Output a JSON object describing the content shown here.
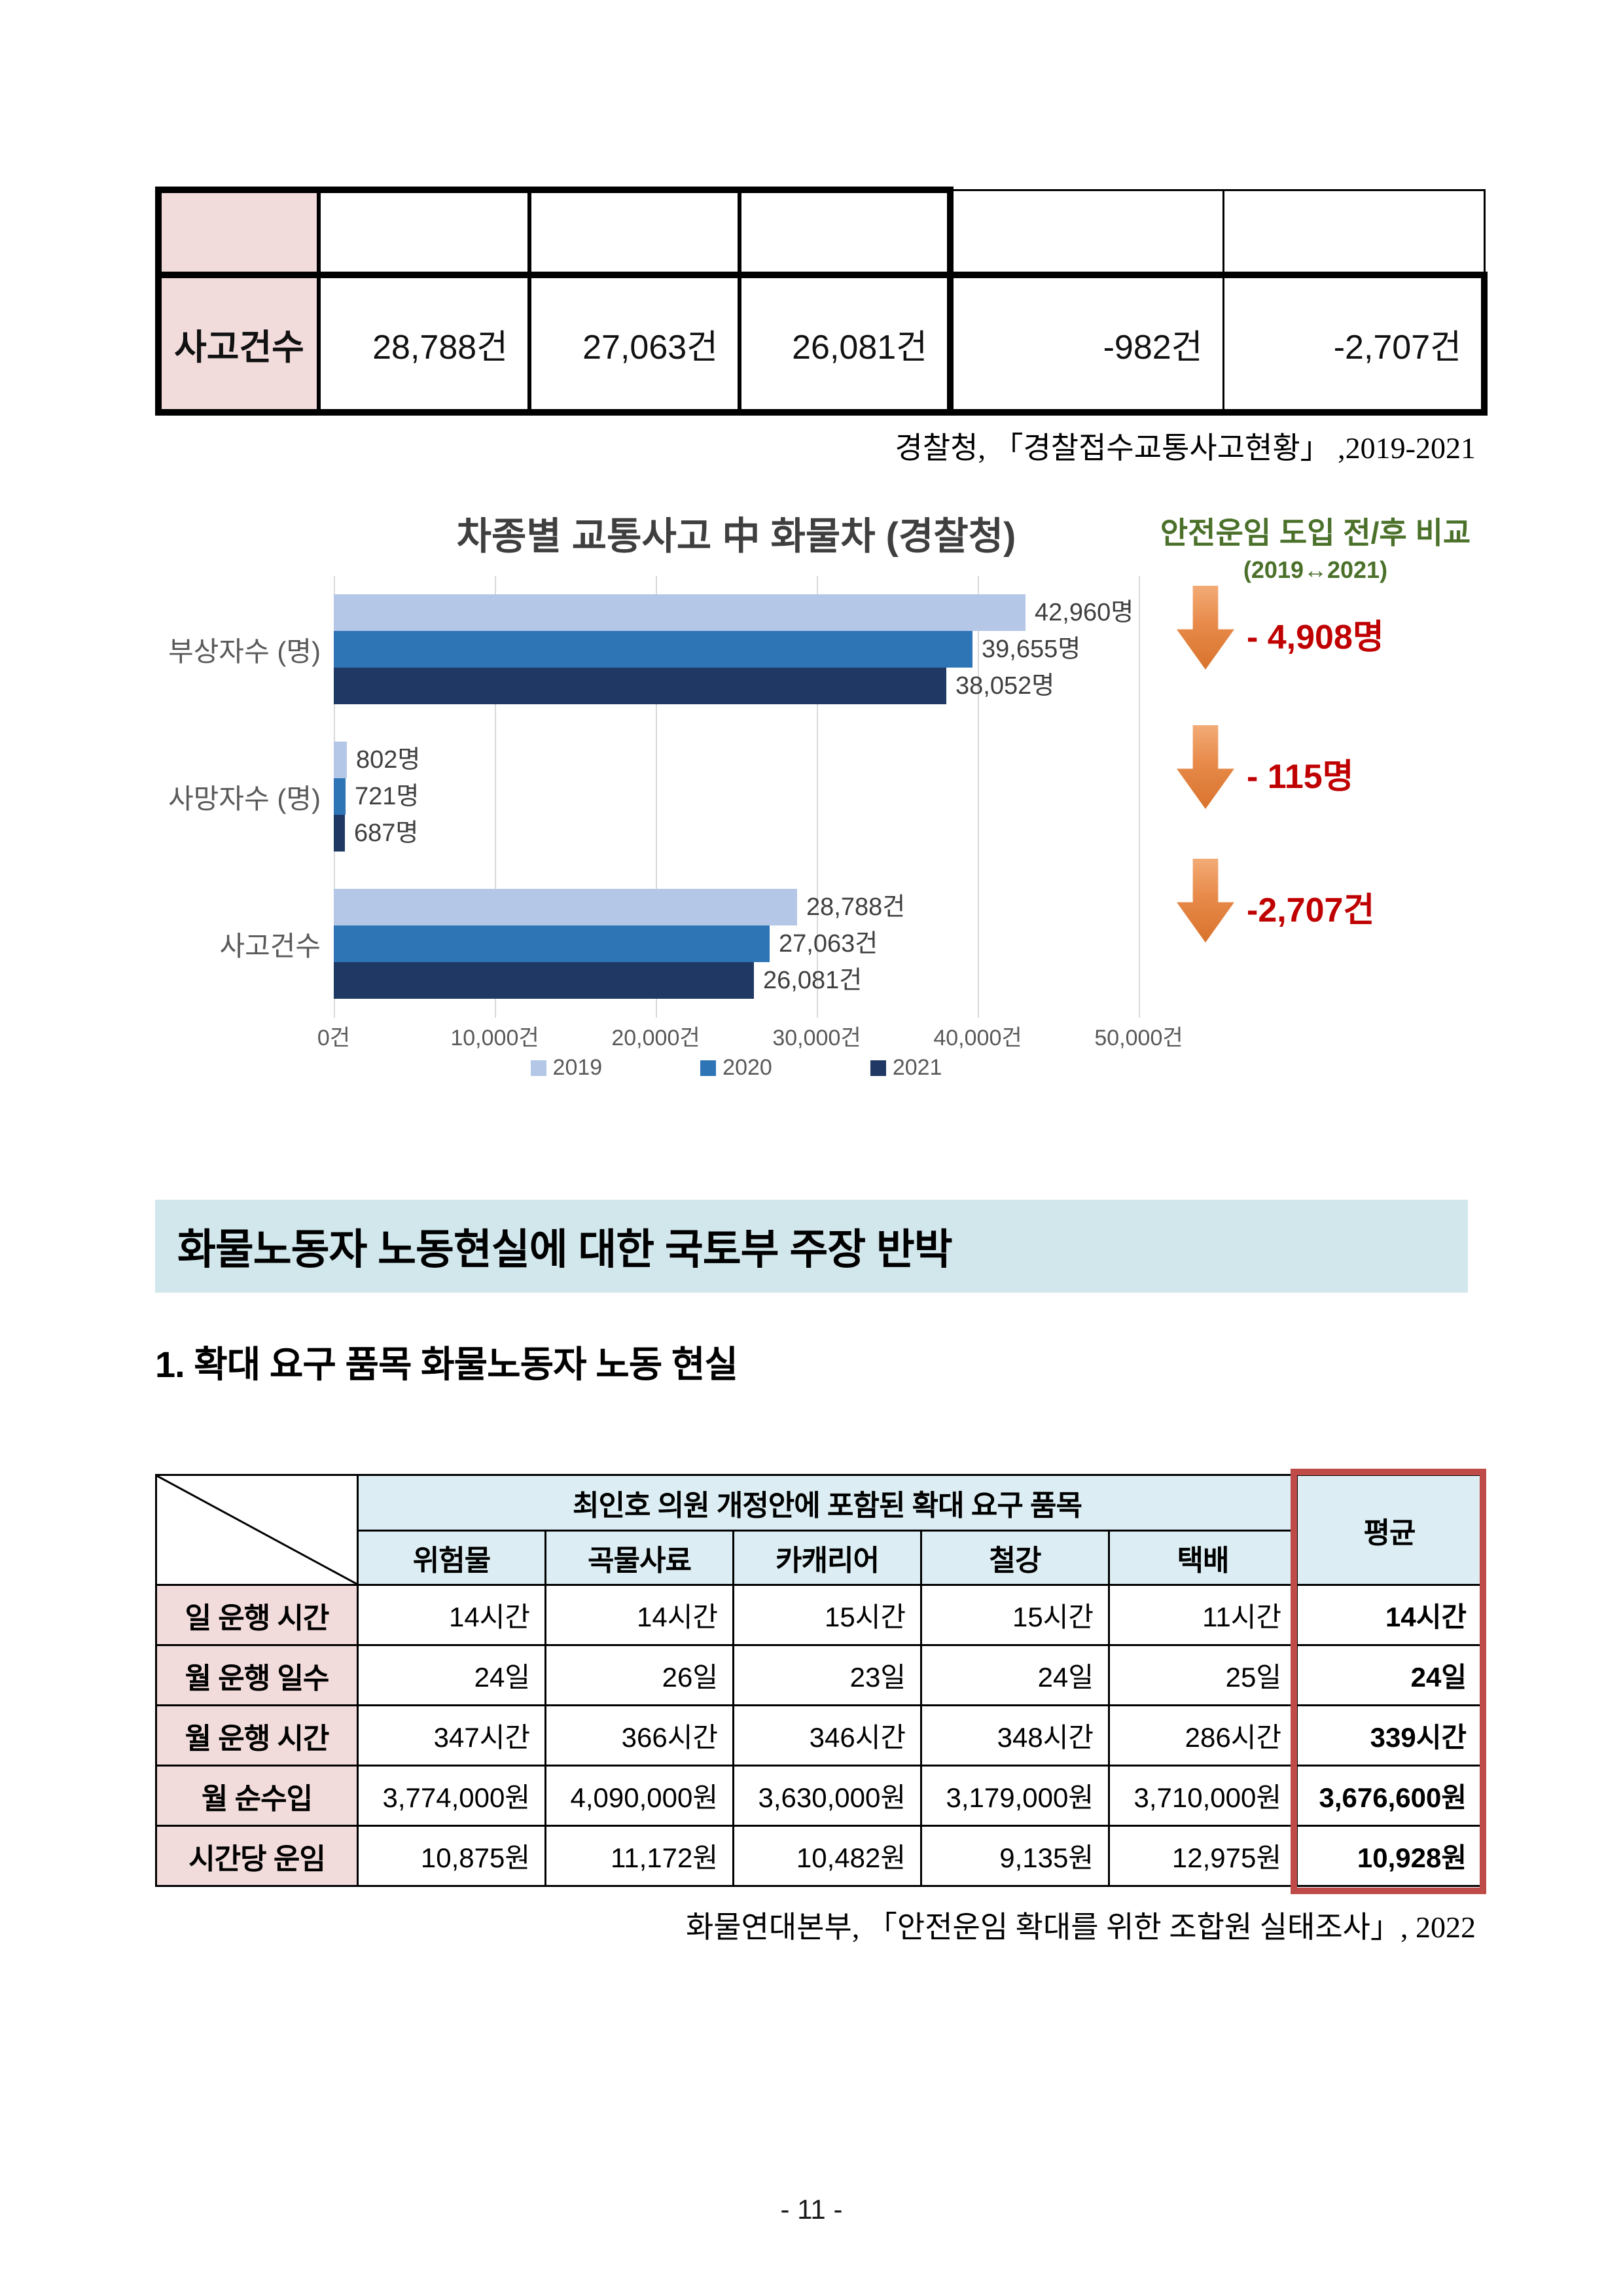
{
  "top_table": {
    "row_label": "사고건수",
    "values": [
      "28,788건",
      "27,063건",
      "26,081건",
      "-982건",
      "-2,707건"
    ]
  },
  "source_police": "경찰청, 「경찰접수교통사고현황」 ,2019-2021",
  "chart_data": {
    "type": "bar",
    "orientation": "horizontal",
    "title": "차종별 교통사고 中 화물차 (경찰청)",
    "categories": [
      "부상자수 (명)",
      "사망자수 (명)",
      "사고건수"
    ],
    "series": [
      {
        "name": "2019",
        "color": "#B4C7E7",
        "values": [
          42960,
          802,
          28788
        ],
        "labels": [
          "42,960명",
          "802명",
          "28,788건"
        ]
      },
      {
        "name": "2020",
        "color": "#2E75B6",
        "values": [
          39655,
          721,
          27063
        ],
        "labels": [
          "39,655명",
          "721명",
          "27,063건"
        ]
      },
      {
        "name": "2021",
        "color": "#1F3864",
        "values": [
          38052,
          687,
          26081
        ],
        "labels": [
          "38,052명",
          "687명",
          "26,081건"
        ]
      }
    ],
    "x_axis": {
      "min": 0,
      "max": 50000,
      "ticks": [
        "0건",
        "10,000건",
        "20,000건",
        "30,000건",
        "40,000건",
        "50,000건"
      ]
    },
    "legend_position": "bottom",
    "gridlines": true
  },
  "comparison": {
    "title": "안전운임 도입 전/후 비교",
    "subtitle": "(2019↔2021)",
    "items": [
      {
        "delta": "- 4,908명"
      },
      {
        "delta": "- 115명"
      },
      {
        "delta": "-2,707건"
      }
    ]
  },
  "section_header": "화물노동자 노동현실에 대한 국토부 주장 반박",
  "subheading": "1. 확대 요구 품목 화물노동자 노동 현실",
  "labor_table": {
    "group_header": "최인호 의원 개정안에 포함된 확대 요구 품목",
    "avg_header": "평균",
    "columns": [
      "위험물",
      "곡물사료",
      "카캐리어",
      "철강",
      "택배"
    ],
    "rows": [
      {
        "label": "일 운행 시간",
        "values": [
          "14시간",
          "14시간",
          "15시간",
          "15시간",
          "11시간"
        ],
        "avg": "14시간"
      },
      {
        "label": "월 운행 일수",
        "values": [
          "24일",
          "26일",
          "23일",
          "24일",
          "25일"
        ],
        "avg": "24일"
      },
      {
        "label": "월 운행 시간",
        "values": [
          "347시간",
          "366시간",
          "346시간",
          "348시간",
          "286시간"
        ],
        "avg": "339시간"
      },
      {
        "label": "월 순수입",
        "values": [
          "3,774,000원",
          "4,090,000원",
          "3,630,000원",
          "3,179,000원",
          "3,710,000원"
        ],
        "avg": "3,676,600원"
      },
      {
        "label": "시간당 운임",
        "values": [
          "10,875원",
          "11,172원",
          "10,482원",
          "9,135원",
          "12,975원"
        ],
        "avg": "10,928원"
      }
    ]
  },
  "source_union": "화물연대본부, 「안전운임 확대를 위한 조합원 실태조사」, 2022",
  "page_number": "- 11 -"
}
